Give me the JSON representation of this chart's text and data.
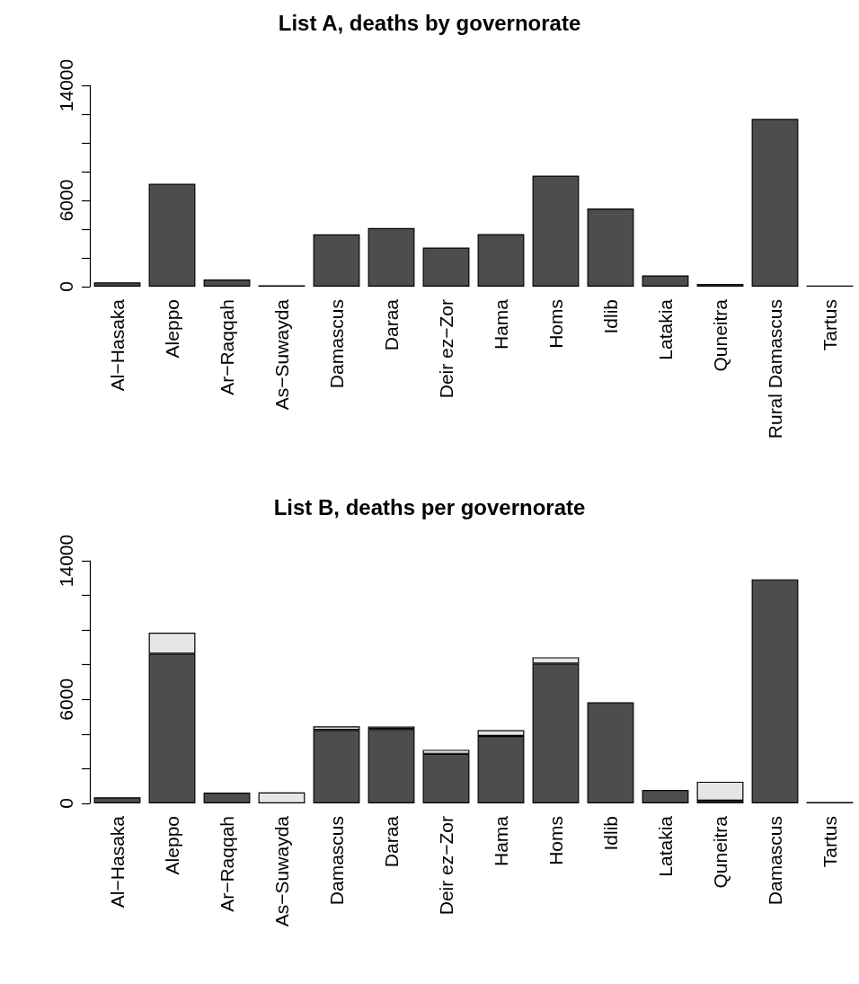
{
  "chart_data": [
    {
      "type": "bar",
      "title": "List A, deaths by governorate",
      "categories": [
        "Al−Hasaka",
        "Aleppo",
        "Ar−Raqqah",
        "As−Suwayda",
        "Damascus",
        "Daraa",
        "Deir ez−Zor",
        "Hama",
        "Homs",
        "Idlib",
        "Latakia",
        "Quneitra",
        "Rural Damascus",
        "Tartus"
      ],
      "values": [
        300,
        7150,
        500,
        100,
        3640,
        4080,
        2720,
        3660,
        7720,
        5440,
        780,
        190,
        11670,
        80
      ],
      "color": "#4d4d4d",
      "ylim": [
        0,
        14000
      ],
      "yticks": [
        0,
        {
          "value": 2000,
          "label": null
        },
        {
          "value": 4000,
          "label": null
        },
        6000,
        {
          "value": 8000,
          "label": null
        },
        {
          "value": 10000,
          "label": null
        },
        {
          "value": 12000,
          "label": null
        },
        14000
      ],
      "grid": false
    },
    {
      "type": "bar",
      "title": "List B, deaths per governorate",
      "categories": [
        "Al−Hasaka",
        "Aleppo",
        "Ar−Raqqah",
        "As−Suwayda",
        "Damascus",
        "Daraa",
        "Deir ez−Zor",
        "Hama",
        "Homs",
        "Idlib",
        "Latakia",
        "Quneitra",
        "Damascus",
        "Tartus"
      ],
      "series": [
        {
          "color": "#4d4d4d",
          "values": [
            350,
            8640,
            620,
            null,
            4240,
            4290,
            2860,
            3890,
            8070,
            5830,
            780,
            160,
            12930,
            80
          ]
        },
        {
          "color": "#e6e6e6",
          "values": [
            null,
            1210,
            null,
            630,
            200,
            140,
            230,
            330,
            360,
            null,
            null,
            1090,
            null,
            null
          ]
        }
      ],
      "stacked": true,
      "ylim": [
        0,
        14000
      ],
      "yticks": [
        0,
        {
          "value": 2000,
          "label": null
        },
        {
          "value": 4000,
          "label": null
        },
        6000,
        {
          "value": 8000,
          "label": null
        },
        {
          "value": 10000,
          "label": null
        },
        {
          "value": 12000,
          "label": null
        },
        14000
      ],
      "grid": false
    }
  ]
}
